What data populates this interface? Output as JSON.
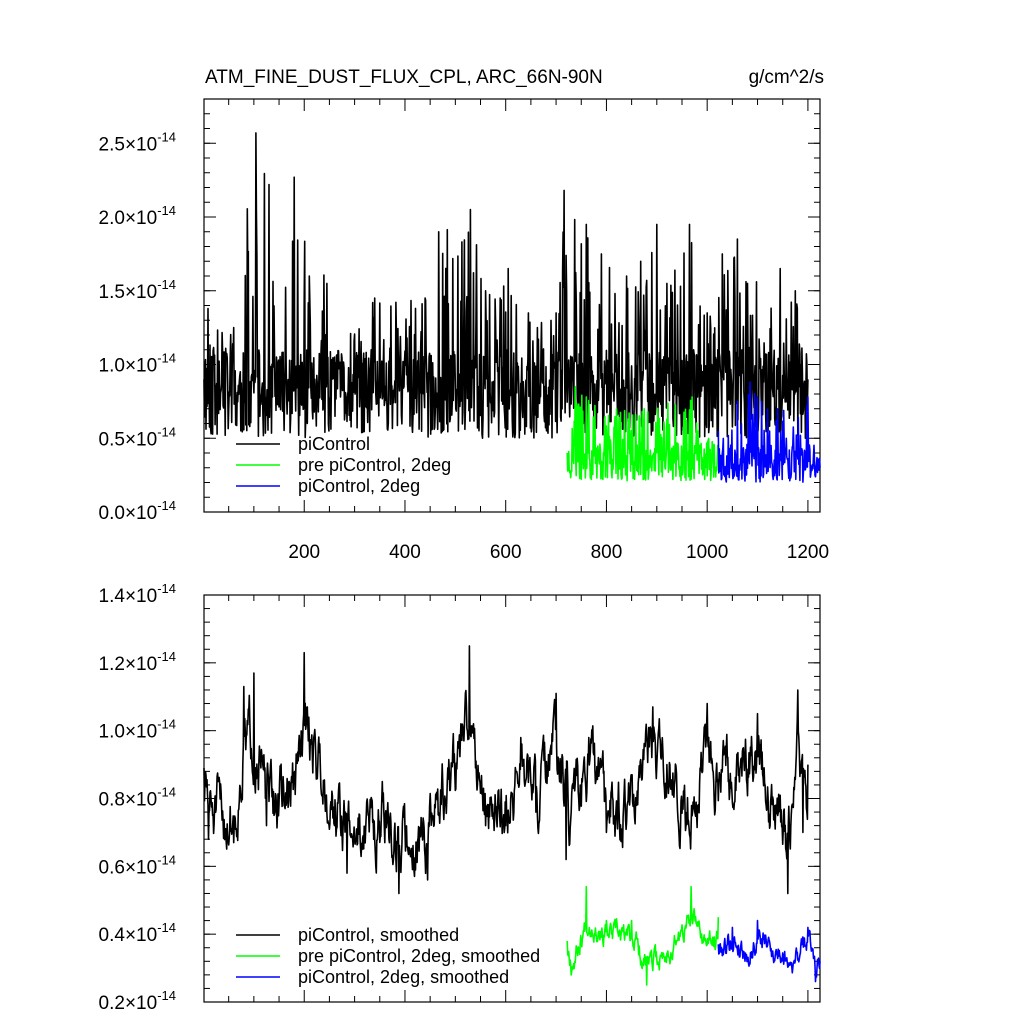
{
  "header": {
    "title": "ATM_FINE_DUST_FLUX_CPL, ARC_66N-90N",
    "units": "g/cm^2/s"
  },
  "colors": {
    "piControl": "#000000",
    "pre_2deg": "#00ff00",
    "pi_2deg": "#0000ff"
  },
  "chart_data": [
    {
      "type": "line",
      "title": "ATM_FINE_DUST_FLUX_CPL, ARC_66N-90N",
      "units": "g/cm^2/s",
      "xlim": [
        1,
        1224
      ],
      "ylim": [
        0.0,
        2.8
      ],
      "y_exponent": "-14",
      "xticks": [
        200,
        400,
        600,
        800,
        1000,
        1200
      ],
      "xtick_labels": [
        "200",
        "400",
        "600",
        "800",
        "1000",
        "1200"
      ],
      "yticks": [
        0.0,
        0.5,
        1.0,
        1.5,
        2.0,
        2.5
      ],
      "ytick_labels": [
        "0.0",
        "0.5",
        "1.0",
        "1.5",
        "2.0",
        "2.5"
      ],
      "ytick_suffix": "×10",
      "legend_position": "bottom-left",
      "series": [
        {
          "name": "piControl",
          "color": "#000000",
          "x_start": 1,
          "x_end": 1200,
          "key_points": [
            [
              1,
              0.9
            ],
            [
              9,
              1.38
            ],
            [
              60,
              1.25
            ],
            [
              104,
              2.57
            ],
            [
              130,
              2.22
            ],
            [
              145,
              1.05
            ],
            [
              180,
              2.27
            ],
            [
              245,
              1.55
            ],
            [
              260,
              1.05
            ],
            [
              340,
              1.45
            ],
            [
              440,
              1.45
            ],
            [
              467,
              1.9
            ],
            [
              530,
              2.05
            ],
            [
              560,
              1.5
            ],
            [
              605,
              1.65
            ],
            [
              645,
              1.35
            ],
            [
              700,
              1.35
            ],
            [
              716,
              2.18
            ],
            [
              760,
              1.95
            ],
            [
              790,
              1.75
            ],
            [
              840,
              1.6
            ],
            [
              868,
              1.7
            ],
            [
              900,
              1.95
            ],
            [
              920,
              1.55
            ],
            [
              965,
              1.95
            ],
            [
              1000,
              1.35
            ],
            [
              1030,
              1.75
            ],
            [
              1060,
              1.85
            ],
            [
              1080,
              1.55
            ],
            [
              1145,
              1.65
            ],
            [
              1175,
              1.5
            ],
            [
              1200,
              0.9
            ]
          ],
          "base": 0.8,
          "spread": 0.3,
          "seed": 11
        },
        {
          "name": "pre piControl, 2deg",
          "color": "#00ff00",
          "x_start": 722,
          "x_end": 1022,
          "key_points": [
            [
              722,
              0.4
            ],
            [
              738,
              0.85
            ],
            [
              760,
              0.78
            ],
            [
              820,
              0.7
            ],
            [
              875,
              0.7
            ],
            [
              970,
              0.78
            ],
            [
              1022,
              0.45
            ]
          ],
          "base": 0.35,
          "spread": 0.14,
          "seed": 23
        },
        {
          "name": "piControl, 2deg",
          "color": "#0000ff",
          "x_start": 1022,
          "x_end": 1224,
          "key_points": [
            [
              1022,
              0.55
            ],
            [
              1060,
              0.75
            ],
            [
              1085,
              0.88
            ],
            [
              1100,
              0.78
            ],
            [
              1140,
              0.7
            ],
            [
              1200,
              0.78
            ],
            [
              1224,
              0.3
            ]
          ],
          "base": 0.33,
          "spread": 0.13,
          "seed": 37
        }
      ]
    },
    {
      "type": "line",
      "xlim": [
        1,
        1224
      ],
      "ylim": [
        0.2,
        1.4
      ],
      "y_exponent": "-14",
      "xticks": [
        200,
        400,
        600,
        800,
        1000,
        1200
      ],
      "yticks": [
        0.2,
        0.4,
        0.6,
        0.8,
        1.0,
        1.2,
        1.4
      ],
      "ytick_labels": [
        "0.2",
        "0.4",
        "0.6",
        "0.8",
        "1.0",
        "1.2",
        "1.4"
      ],
      "ytick_suffix": "×10",
      "legend_position": "bottom-left",
      "series": [
        {
          "name": "piControl, smoothed",
          "color": "#000000",
          "x_start": 1,
          "x_end": 1200,
          "key_points": [
            [
              1,
              0.89
            ],
            [
              10,
              0.68
            ],
            [
              60,
              0.67
            ],
            [
              80,
              1.13
            ],
            [
              100,
              1.17
            ],
            [
              125,
              0.72
            ],
            [
              180,
              0.86
            ],
            [
              200,
              1.23
            ],
            [
              260,
              0.72
            ],
            [
              285,
              0.58
            ],
            [
              360,
              0.67
            ],
            [
              388,
              0.52
            ],
            [
              445,
              0.56
            ],
            [
              528,
              1.25
            ],
            [
              560,
              0.72
            ],
            [
              600,
              0.72
            ],
            [
              630,
              0.98
            ],
            [
              660,
              0.76
            ],
            [
              700,
              1.11
            ],
            [
              720,
              0.62
            ],
            [
              765,
              0.98
            ],
            [
              800,
              0.7
            ],
            [
              860,
              0.78
            ],
            [
              892,
              1.07
            ],
            [
              920,
              0.9
            ],
            [
              958,
              0.72
            ],
            [
              1000,
              1.08
            ],
            [
              1020,
              0.85
            ],
            [
              1100,
              1.05
            ],
            [
              1125,
              0.72
            ],
            [
              1140,
              0.75
            ],
            [
              1160,
              0.52
            ],
            [
              1180,
              1.12
            ],
            [
              1190,
              0.7
            ],
            [
              1200,
              0.9
            ]
          ],
          "base": 0.82,
          "spread": 0.11,
          "seed": 51
        },
        {
          "name": "pre piControl, 2deg, smoothed",
          "color": "#00ff00",
          "x_start": 722,
          "x_end": 1022,
          "key_points": [
            [
              722,
              0.38
            ],
            [
              730,
              0.28
            ],
            [
              760,
              0.54
            ],
            [
              800,
              0.44
            ],
            [
              850,
              0.44
            ],
            [
              880,
              0.25
            ],
            [
              922,
              0.35
            ],
            [
              968,
              0.54
            ],
            [
              1000,
              0.37
            ],
            [
              1022,
              0.45
            ]
          ],
          "base": 0.35,
          "spread": 0.04,
          "seed": 67
        },
        {
          "name": "piControl, 2deg, smoothed",
          "color": "#0000ff",
          "x_start": 1022,
          "x_end": 1224,
          "key_points": [
            [
              1022,
              0.37
            ],
            [
              1050,
              0.42
            ],
            [
              1080,
              0.32
            ],
            [
              1100,
              0.44
            ],
            [
              1130,
              0.35
            ],
            [
              1170,
              0.3
            ],
            [
              1200,
              0.42
            ],
            [
              1215,
              0.26
            ],
            [
              1224,
              0.32
            ]
          ],
          "base": 0.35,
          "spread": 0.04,
          "seed": 79
        }
      ]
    }
  ]
}
